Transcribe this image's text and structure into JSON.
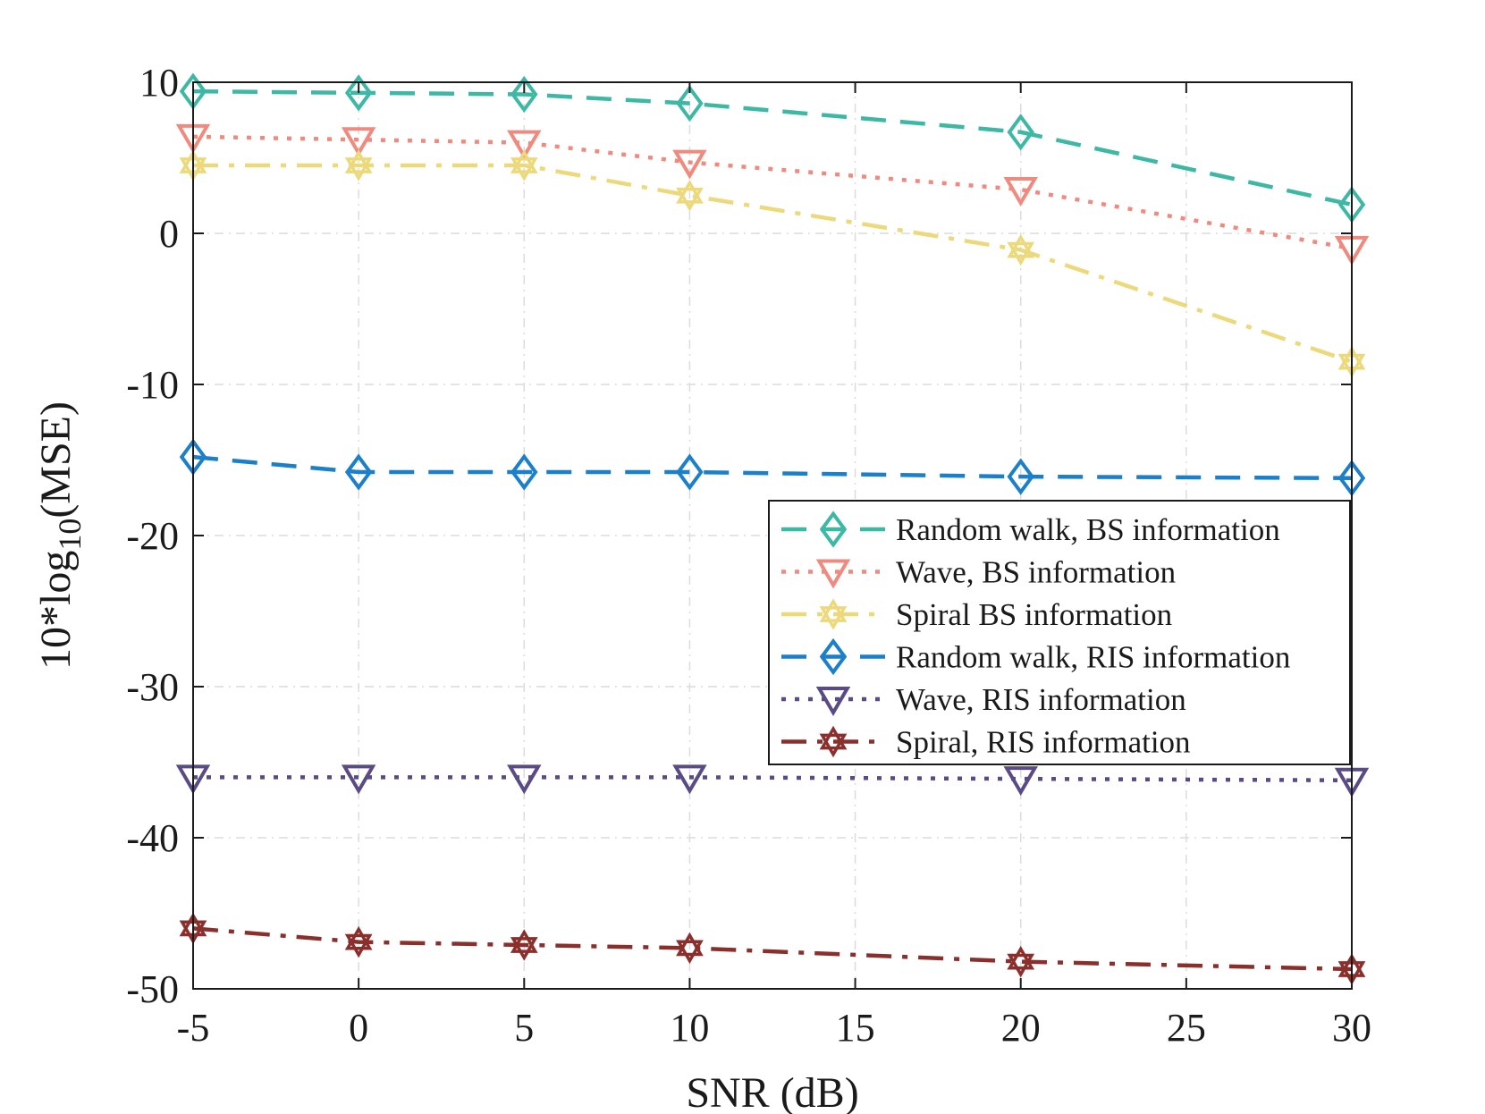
{
  "chart_data": {
    "type": "line",
    "title": "",
    "xlabel": "SNR (dB)",
    "ylabel_parts": {
      "prefix": "10*log",
      "subscript": "10",
      "suffix": "(MSE)"
    },
    "xlim": [
      -5,
      30
    ],
    "ylim": [
      -50,
      10
    ],
    "xticks": [
      -5,
      0,
      5,
      10,
      15,
      20,
      25,
      30
    ],
    "yticks": [
      10,
      0,
      -10,
      -20,
      -30,
      -40,
      -50
    ],
    "xtick_labels": [
      "-5",
      "0",
      "5",
      "10",
      "15",
      "20",
      "25",
      "30"
    ],
    "ytick_labels": [
      "10",
      "0",
      "-10",
      "-20",
      "-30",
      "-40",
      "-50"
    ],
    "grid": true,
    "legend_position": "center-right",
    "x": [
      -5,
      0,
      5,
      10,
      20,
      30
    ],
    "series": [
      {
        "name": "Random walk, BS information",
        "color": "#3cb8a4",
        "dash": "dash",
        "marker": "diamond",
        "values": [
          9.4,
          9.3,
          9.2,
          8.6,
          6.7,
          1.9
        ]
      },
      {
        "name": "Wave, BS information",
        "color": "#f08a7e",
        "dash": "dot",
        "marker": "triangle-down",
        "values": [
          6.4,
          6.2,
          6.0,
          4.7,
          2.9,
          -1.0
        ]
      },
      {
        "name": "Spiral BS information",
        "color": "#ecd97c",
        "dash": "dashdot",
        "marker": "hexagram",
        "values": [
          4.5,
          4.5,
          4.5,
          2.5,
          -1.1,
          -8.5
        ]
      },
      {
        "name": "Random walk, RIS information",
        "color": "#1b7fc9",
        "dash": "dash",
        "marker": "diamond",
        "values": [
          -14.8,
          -15.8,
          -15.8,
          -15.8,
          -16.1,
          -16.2
        ]
      },
      {
        "name": "Wave, RIS information",
        "color": "#5a4a85",
        "dash": "dot",
        "marker": "triangle-down",
        "values": [
          -36.0,
          -36.0,
          -36.0,
          -36.0,
          -36.1,
          -36.2
        ]
      },
      {
        "name": "Spiral, RIS information",
        "color": "#8b2f2c",
        "dash": "dashdot",
        "marker": "hexagram",
        "values": [
          -46.0,
          -46.9,
          -47.1,
          -47.3,
          -48.2,
          -48.7
        ]
      }
    ]
  }
}
